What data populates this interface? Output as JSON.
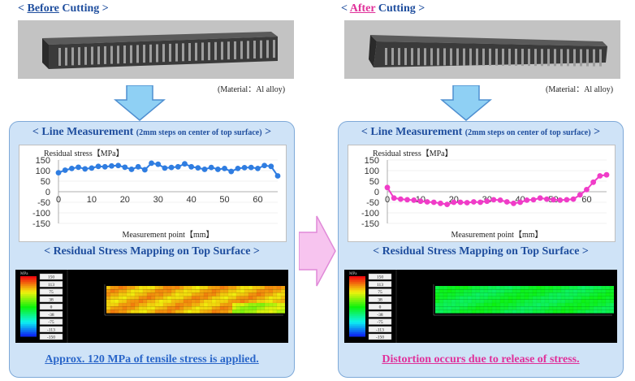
{
  "before": {
    "heading_prefix": "< ",
    "heading_highlight": "Before",
    "heading_suffix": " Cutting >",
    "material": "(Material：Al alloy)",
    "line_title": "< Line Measurement ",
    "line_subtitle": "(2mm steps on center of top surface)",
    "line_title_end": " >",
    "mapping_title": "< Residual Stress Mapping on Top Surface >",
    "conclusion": "Approx. 120 MPa of tensile stress is applied."
  },
  "after": {
    "heading_prefix": "< ",
    "heading_highlight": "After",
    "heading_suffix": " Cutting >",
    "material": "(Material：Al alloy)",
    "line_title": "< Line Measurement ",
    "line_subtitle": "(2mm steps on center of top surface)",
    "line_title_end": " >",
    "mapping_title": "< Residual Stress Mapping on Top Surface >",
    "conclusion": "Distortion occurs due to release of stress."
  },
  "colorbar_labels": [
    "150",
    "113",
    "75",
    "38",
    "0",
    "-38",
    "-75",
    "-113",
    "-150"
  ],
  "colorbar_unit": "MPa",
  "colors": {
    "before_series": "#2f7de1",
    "after_series": "#f03cc8",
    "heading": "#1f4e9e",
    "panel": "#cfe3f7",
    "arrow": "#8fd0f4",
    "right_arrow": "#f7c4ef"
  },
  "chart_data": [
    {
      "type": "scatter",
      "title": "",
      "ylabel": "Residual stress【MPa】",
      "xlabel": "Measurement point【mm】",
      "xlim": [
        0,
        66
      ],
      "ylim": [
        -150,
        150
      ],
      "xticks": [
        0,
        10,
        20,
        30,
        40,
        50,
        60
      ],
      "yticks": [
        150,
        100,
        50,
        0,
        -50,
        -100,
        -150
      ],
      "series": [
        {
          "x": [
            0,
            2,
            4,
            6,
            8,
            10,
            12,
            14,
            16,
            18,
            20,
            22,
            24,
            26,
            28,
            30,
            32,
            34,
            36,
            38,
            40,
            42,
            44,
            46,
            48,
            50,
            52,
            54,
            56,
            58,
            60,
            62,
            64,
            66
          ],
          "y": [
            90,
            102,
            110,
            116,
            108,
            112,
            120,
            118,
            122,
            124,
            116,
            106,
            118,
            104,
            135,
            130,
            112,
            115,
            118,
            132,
            118,
            113,
            106,
            115,
            106,
            110,
            96,
            110,
            114,
            115,
            110,
            124,
            120,
            75
          ]
        }
      ]
    },
    {
      "type": "scatter",
      "title": "",
      "ylabel": "Residual stress【MPa】",
      "xlabel": "Measurement point【mm】",
      "xlim": [
        0,
        66
      ],
      "ylim": [
        -150,
        150
      ],
      "xticks": [
        0,
        10,
        20,
        30,
        40,
        50,
        60
      ],
      "yticks": [
        150,
        100,
        50,
        0,
        -50,
        -100,
        -150
      ],
      "series": [
        {
          "x": [
            0,
            2,
            4,
            6,
            8,
            10,
            12,
            14,
            16,
            18,
            20,
            22,
            24,
            26,
            28,
            30,
            32,
            34,
            36,
            38,
            40,
            42,
            44,
            46,
            48,
            50,
            52,
            54,
            56,
            58,
            60,
            62,
            64,
            66
          ],
          "y": [
            20,
            -30,
            -35,
            -38,
            -40,
            -45,
            -48,
            -50,
            -55,
            -60,
            -50,
            -50,
            -52,
            -48,
            -50,
            -45,
            -38,
            -40,
            -48,
            -55,
            -50,
            -40,
            -38,
            -30,
            -35,
            -38,
            -40,
            -38,
            -35,
            -15,
            10,
            45,
            75,
            80
          ]
        }
      ]
    }
  ]
}
